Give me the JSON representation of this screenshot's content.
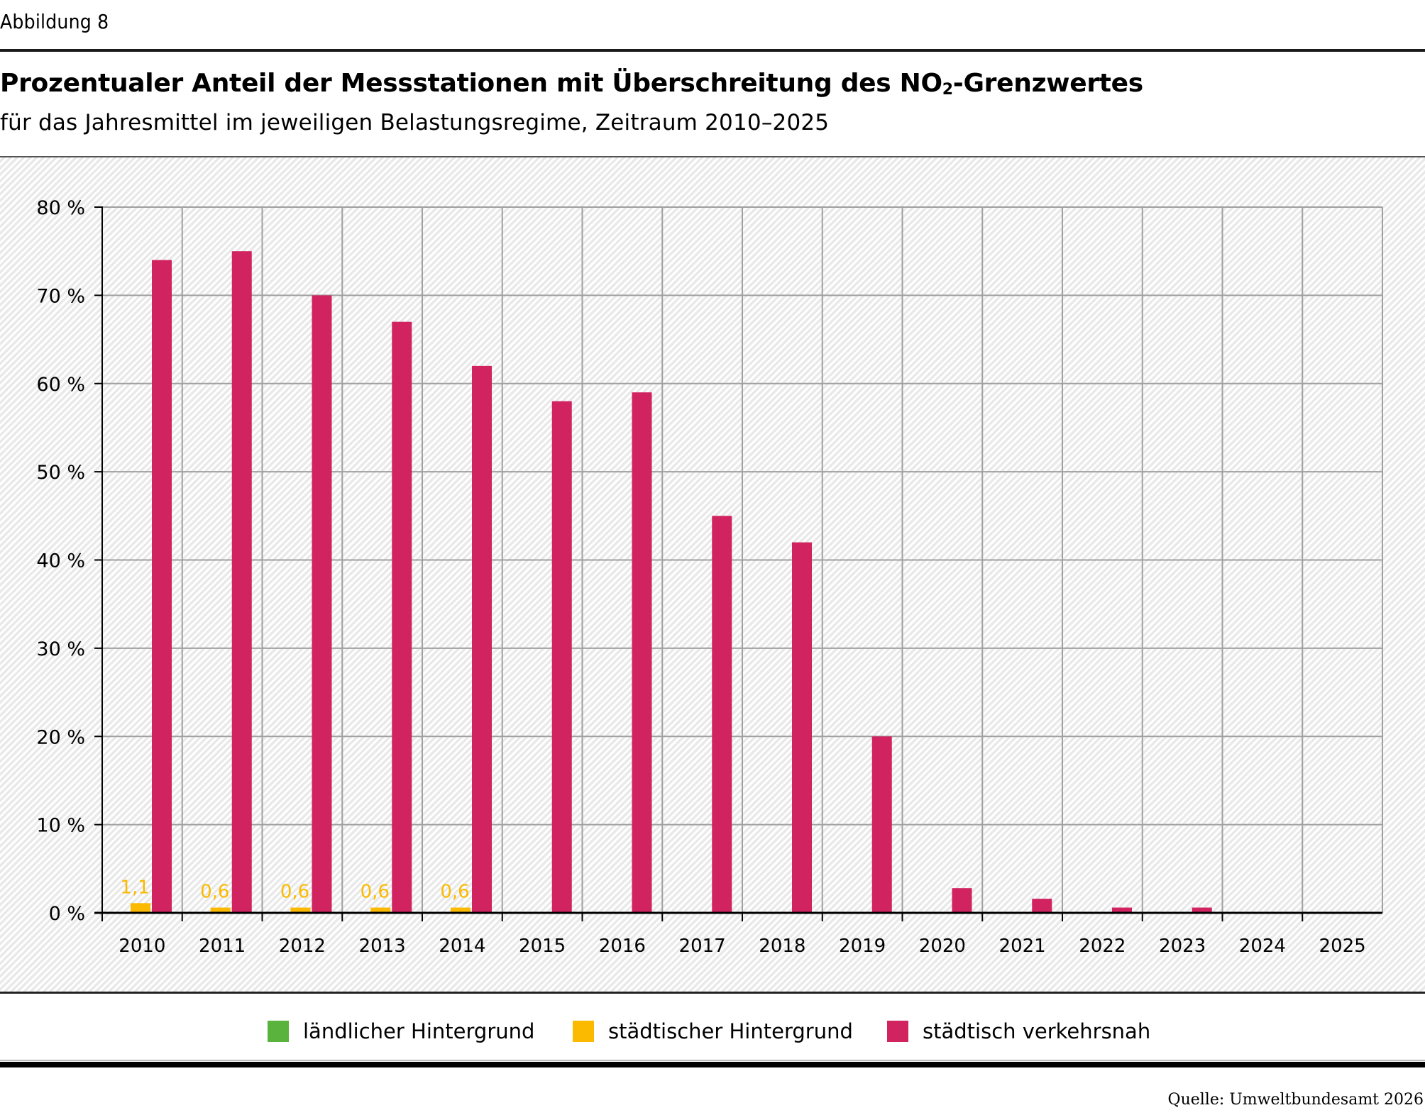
{
  "figure_label": "Abbildung 8",
  "title_main": "Prozentualer Anteil der Messstationen mit Überschreitung des NO",
  "title_sub": "2",
  "title_end": "-Grenzwertes",
  "subtitle": "für das Jahresmittel im jeweiligen Belastungsregime, Zeitraum 2010–2025",
  "source": "Quelle: Umweltbundesamt 2026",
  "colors": {
    "laendlich": "#5ab33c",
    "staedtisch_hintergrund": "#fbb900",
    "verkehrsnah": "#d02360",
    "grid": "#a0a0a0",
    "axis": "#000000"
  },
  "chart_data": {
    "type": "bar",
    "title": "Prozentualer Anteil der Messstationen mit Überschreitung des NO₂-Grenzwertes",
    "subtitle": "für das Jahresmittel im jeweiligen Belastungsregime, Zeitraum 2010–2025",
    "xlabel": "",
    "ylabel": "",
    "ylim": [
      0,
      80
    ],
    "grid": true,
    "legend_position": "bottom",
    "y_ticks": [
      0,
      10,
      20,
      30,
      40,
      50,
      60,
      70,
      80
    ],
    "y_tick_labels": [
      "0 %",
      "10 %",
      "20 %",
      "30 %",
      "40 %",
      "50 %",
      "60 %",
      "70 %",
      "80 %"
    ],
    "categories": [
      "2010",
      "2011",
      "2012",
      "2013",
      "2014",
      "2015",
      "2016",
      "2017",
      "2018",
      "2019",
      "2020",
      "2021",
      "2022",
      "2023",
      "2024",
      "2025"
    ],
    "series": [
      {
        "name": "ländlicher Hintergrund",
        "color": "#5ab33c",
        "values": [
          0,
          0,
          0,
          0,
          0,
          0,
          0,
          0,
          0,
          0,
          0,
          0,
          0,
          0,
          0,
          0
        ]
      },
      {
        "name": "städtischer Hintergrund",
        "color": "#fbb900",
        "values": [
          1.1,
          0.6,
          0.6,
          0.6,
          0.6,
          0,
          0,
          0,
          0,
          0,
          0,
          0,
          0,
          0,
          0,
          0
        ],
        "labels": [
          "1,1",
          "0,6",
          "0,6",
          "0,6",
          "0,6",
          "",
          "",
          "",
          "",
          "",
          "",
          "",
          "",
          "",
          "",
          ""
        ]
      },
      {
        "name": "städtisch verkehrsnah",
        "color": "#d02360",
        "values": [
          74,
          75,
          70,
          67,
          62,
          58,
          59,
          45,
          42,
          20,
          2.8,
          1.6,
          0.6,
          0.6,
          0,
          0
        ]
      }
    ]
  }
}
